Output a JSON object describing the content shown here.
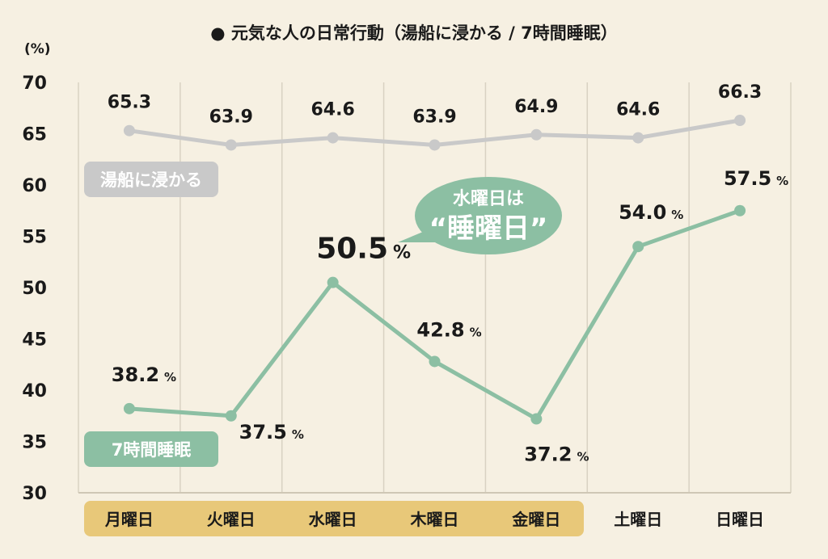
{
  "chart_data": {
    "type": "line",
    "title": "● 元気な人の日常行動（湯船に浸かる / 7時間睡眠）",
    "ylabel": "(%)",
    "ylim": [
      30,
      70
    ],
    "yticks": [
      "30",
      "35",
      "40",
      "45",
      "50",
      "55",
      "60",
      "65",
      "70"
    ],
    "categories": [
      "月曜日",
      "火曜日",
      "水曜日",
      "木曜日",
      "金曜日",
      "土曜日",
      "日曜日"
    ],
    "weekday_highlight": [
      "月曜日",
      "火曜日",
      "水曜日",
      "木曜日",
      "金曜日"
    ],
    "grid": true,
    "series": [
      {
        "name": "湯船に浸かる",
        "values": [
          65.3,
          63.9,
          64.6,
          63.9,
          64.9,
          64.6,
          66.3
        ],
        "labels": [
          "65.3",
          "63.9",
          "64.6",
          "63.9",
          "64.9",
          "64.6",
          "66.3"
        ],
        "color": "#c9c9c9"
      },
      {
        "name": "7時間睡眠",
        "values": [
          38.2,
          37.5,
          50.5,
          42.8,
          37.2,
          54.0,
          57.5
        ],
        "labels": [
          "38.2",
          "37.5",
          "50.5",
          "42.8",
          "37.2",
          "54.0",
          "57.5"
        ],
        "unit": "%",
        "color": "#8cbfa3"
      }
    ],
    "annotation": {
      "line1": "水曜日は",
      "line2": "“睡曜日”"
    }
  }
}
